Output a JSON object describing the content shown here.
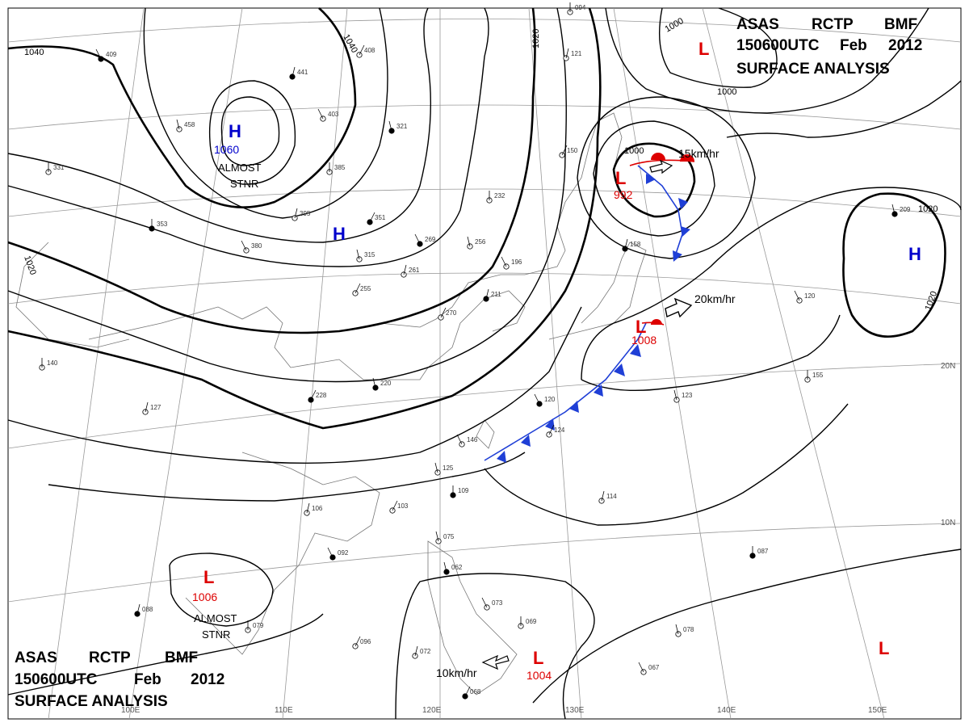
{
  "header": {
    "top_right": [
      "ASAS",
      "RCTP",
      "BMF",
      "150600UTC",
      "Feb",
      "2012",
      "SURFACE ANALYSIS"
    ],
    "bottom_left": [
      "ASAS",
      "RCTP",
      "BMF",
      "150600UTC",
      "Feb",
      "2012",
      "SURFACE ANALYSIS"
    ]
  },
  "axis_labels": {
    "longitudes": [
      "110E",
      "120E",
      "130E",
      "140E",
      "150E"
    ],
    "latitudes": [
      "20N",
      "10N"
    ],
    "partial_left": "100E"
  },
  "isobar_labels": [
    "1040",
    "1040",
    "1020",
    "1020",
    "1000",
    "1000",
    "1000",
    "1020",
    "1020"
  ],
  "systems": [
    {
      "type": "H",
      "value": "1060",
      "color": "#0000cc",
      "note": "ALMOST STNR"
    },
    {
      "type": "H",
      "value": "",
      "color": "#0000cc",
      "note": ""
    },
    {
      "type": "H",
      "value": "",
      "color": "#0000cc",
      "note": ""
    },
    {
      "type": "L",
      "value": "992",
      "color": "#dd0000",
      "note": ""
    },
    {
      "type": "L",
      "value": "1008",
      "color": "#dd0000",
      "note": ""
    },
    {
      "type": "L",
      "value": "1006",
      "color": "#dd0000",
      "note": "ALMOST STNR"
    },
    {
      "type": "L",
      "value": "1004",
      "color": "#dd0000",
      "note": ""
    },
    {
      "type": "L",
      "value": "",
      "color": "#dd0000",
      "note": ""
    },
    {
      "type": "L",
      "value": "",
      "color": "#dd0000",
      "note": ""
    }
  ],
  "movements": [
    "15km/hr",
    "20km/hr",
    "10km/hr"
  ],
  "station_values": [
    "409",
    "458",
    "331",
    "441",
    "408",
    "403",
    "321",
    "385",
    "395",
    "351",
    "380",
    "315",
    "353",
    "261",
    "255",
    "269",
    "256",
    "232",
    "211",
    "270",
    "196",
    "220",
    "140",
    "127",
    "228",
    "146",
    "125",
    "109",
    "106",
    "103",
    "092",
    "075",
    "079",
    "088",
    "096",
    "073",
    "062",
    "069",
    "072",
    "068",
    "067",
    "078",
    "087",
    "114",
    "124",
    "120",
    "123",
    "155",
    "158",
    "150",
    "120",
    "209",
    "094",
    "121"
  ],
  "colors": {
    "high": "#0000cc",
    "low": "#dd0000",
    "cold_front": "#1f3fd6",
    "warm_front": "#dd0000"
  }
}
